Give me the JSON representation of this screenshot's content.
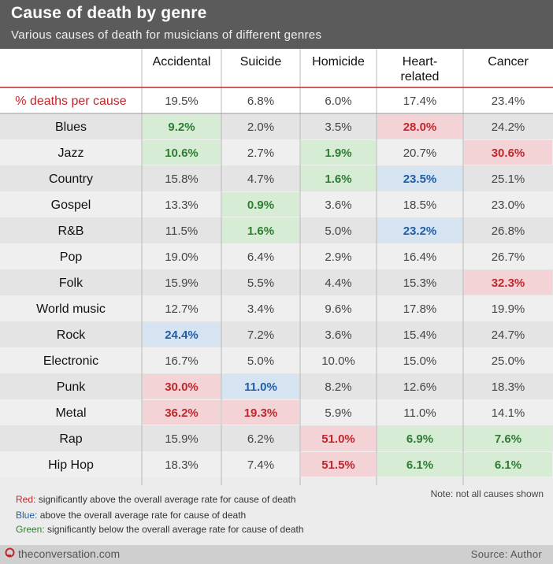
{
  "header": {
    "title": "Cause of death by genre",
    "subtitle": "Various causes of death for musicians of different genres"
  },
  "colors": {
    "red": "#f3d3d6",
    "blue": "#d6e4f2",
    "green": "#d7ecd5",
    "red_text": "#c1272d",
    "green_text": "#2e7d32",
    "blue_text": "#1f5fa8"
  },
  "chart_data": {
    "type": "table",
    "columns": [
      "Accidental",
      "Suicide",
      "Homicide",
      "Heart-\nrelated",
      "Cancer"
    ],
    "summary_row": {
      "label": "% deaths per cause",
      "values": [
        "19.5%",
        "6.8%",
        "6.0%",
        "17.4%",
        "23.4%"
      ]
    },
    "rows": [
      {
        "genre": "Blues",
        "values": [
          "9.2%",
          "2.0%",
          "3.5%",
          "28.0%",
          "24.2%"
        ],
        "highlights": [
          "green",
          "",
          "",
          "red",
          ""
        ]
      },
      {
        "genre": "Jazz",
        "values": [
          "10.6%",
          "2.7%",
          "1.9%",
          "20.7%",
          "30.6%"
        ],
        "highlights": [
          "green",
          "",
          "green",
          "",
          "red"
        ]
      },
      {
        "genre": "Country",
        "values": [
          "15.8%",
          "4.7%",
          "1.6%",
          "23.5%",
          "25.1%"
        ],
        "highlights": [
          "",
          "",
          "green",
          "blue",
          ""
        ]
      },
      {
        "genre": "Gospel",
        "values": [
          "13.3%",
          "0.9%",
          "3.6%",
          "18.5%",
          "23.0%"
        ],
        "highlights": [
          "",
          "green",
          "",
          "",
          ""
        ]
      },
      {
        "genre": "R&B",
        "values": [
          "11.5%",
          "1.6%",
          "5.0%",
          "23.2%",
          "26.8%"
        ],
        "highlights": [
          "",
          "green",
          "",
          "blue",
          ""
        ]
      },
      {
        "genre": "Pop",
        "values": [
          "19.0%",
          "6.4%",
          "2.9%",
          "16.4%",
          "26.7%"
        ],
        "highlights": [
          "",
          "",
          "",
          "",
          ""
        ]
      },
      {
        "genre": "Folk",
        "values": [
          "15.9%",
          "5.5%",
          "4.4%",
          "15.3%",
          "32.3%"
        ],
        "highlights": [
          "",
          "",
          "",
          "",
          "red"
        ]
      },
      {
        "genre": "World music",
        "values": [
          "12.7%",
          "3.4%",
          "9.6%",
          "17.8%",
          "19.9%"
        ],
        "highlights": [
          "",
          "",
          "",
          "",
          ""
        ]
      },
      {
        "genre": "Rock",
        "values": [
          "24.4%",
          "7.2%",
          "3.6%",
          "15.4%",
          "24.7%"
        ],
        "highlights": [
          "blue",
          "",
          "",
          "",
          ""
        ]
      },
      {
        "genre": "Electronic",
        "values": [
          "16.7%",
          "5.0%",
          "10.0%",
          "15.0%",
          "25.0%"
        ],
        "highlights": [
          "",
          "",
          "",
          "",
          ""
        ]
      },
      {
        "genre": "Punk",
        "values": [
          "30.0%",
          "11.0%",
          "8.2%",
          "12.6%",
          "18.3%"
        ],
        "highlights": [
          "red",
          "blue",
          "",
          "",
          ""
        ]
      },
      {
        "genre": "Metal",
        "values": [
          "36.2%",
          "19.3%",
          "5.9%",
          "11.0%",
          "14.1%"
        ],
        "highlights": [
          "red",
          "red",
          "",
          "",
          ""
        ]
      },
      {
        "genre": "Rap",
        "values": [
          "15.9%",
          "6.2%",
          "51.0%",
          "6.9%",
          "7.6%"
        ],
        "highlights": [
          "",
          "",
          "red",
          "green",
          "green"
        ]
      },
      {
        "genre": "Hip Hop",
        "values": [
          "18.3%",
          "7.4%",
          "51.5%",
          "6.1%",
          "6.1%"
        ],
        "highlights": [
          "",
          "",
          "red",
          "green",
          "green"
        ]
      }
    ]
  },
  "legend": {
    "red_key": "Red:",
    "red_text": " significantly above the overall average rate for cause of death",
    "blue_key": "Blue:",
    "blue_text": " above the overall average rate for cause of death",
    "green_key": "Green:",
    "green_text": " significantly below the overall average rate for cause of death",
    "note": "Note: not all causes shown"
  },
  "footer": {
    "brand": "theconversation.com",
    "source": "Source: Author"
  }
}
